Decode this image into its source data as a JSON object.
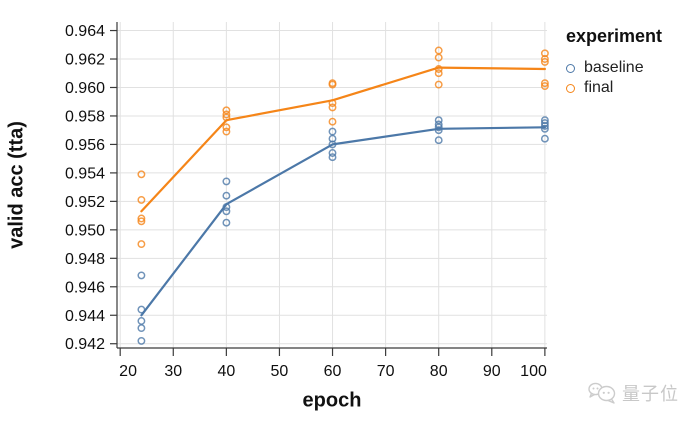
{
  "chart_data": {
    "type": "line+scatter",
    "title": "",
    "xlabel": "epoch",
    "ylabel": "valid acc (tta)",
    "xlim": [
      19.4,
      100.4
    ],
    "ylim": [
      0.9417,
      0.9646
    ],
    "x_ticks": [
      20,
      30,
      40,
      50,
      60,
      70,
      80,
      90,
      100
    ],
    "y_ticks": [
      0.942,
      0.944,
      0.946,
      0.948,
      0.95,
      0.952,
      0.954,
      0.956,
      0.958,
      0.96,
      0.962,
      0.964
    ],
    "y_tick_decimals": 3,
    "grid": true,
    "legend_title": "experiment",
    "legend_position": "top-right",
    "series": [
      {
        "name": "baseline",
        "color": "#4C78A8",
        "x": [
          24,
          24,
          24,
          24,
          24,
          40,
          40,
          40,
          40,
          40,
          60,
          60,
          60,
          60,
          60,
          80,
          80,
          80,
          80,
          80,
          100,
          100,
          100,
          100,
          100
        ],
        "y": [
          0.9468,
          0.9444,
          0.9436,
          0.9431,
          0.9422,
          0.9534,
          0.9524,
          0.9516,
          0.9513,
          0.9505,
          0.9569,
          0.9564,
          0.956,
          0.9554,
          0.9551,
          0.9577,
          0.9574,
          0.9572,
          0.957,
          0.9563,
          0.9577,
          0.9575,
          0.9573,
          0.9571,
          0.9564
        ],
        "line_x": [
          24,
          40,
          60,
          80,
          100
        ],
        "line_y": [
          0.944,
          0.9518,
          0.956,
          0.9571,
          0.9572
        ]
      },
      {
        "name": "final",
        "color": "#F58518",
        "x": [
          24,
          24,
          24,
          24,
          24,
          40,
          40,
          40,
          40,
          40,
          60,
          60,
          60,
          60,
          60,
          80,
          80,
          80,
          80,
          80,
          100,
          100,
          100,
          100,
          100
        ],
        "y": [
          0.9539,
          0.9521,
          0.9508,
          0.9506,
          0.949,
          0.9584,
          0.9581,
          0.9579,
          0.9572,
          0.9569,
          0.9603,
          0.9602,
          0.9589,
          0.9586,
          0.9576,
          0.9626,
          0.9621,
          0.9613,
          0.961,
          0.9602,
          0.9624,
          0.962,
          0.9618,
          0.9603,
          0.9601
        ],
        "line_x": [
          24,
          40,
          60,
          80,
          100
        ],
        "line_y": [
          0.9513,
          0.9577,
          0.9591,
          0.9614,
          0.9613
        ]
      }
    ]
  },
  "watermark": {
    "text": "量子位"
  },
  "style": {
    "grid_color": "#e1e1e1",
    "axis_color": "#3a3a3a",
    "label_color": "#0f0f0f",
    "watermark_color": "#c8c8c8",
    "background": "#ffffff"
  }
}
